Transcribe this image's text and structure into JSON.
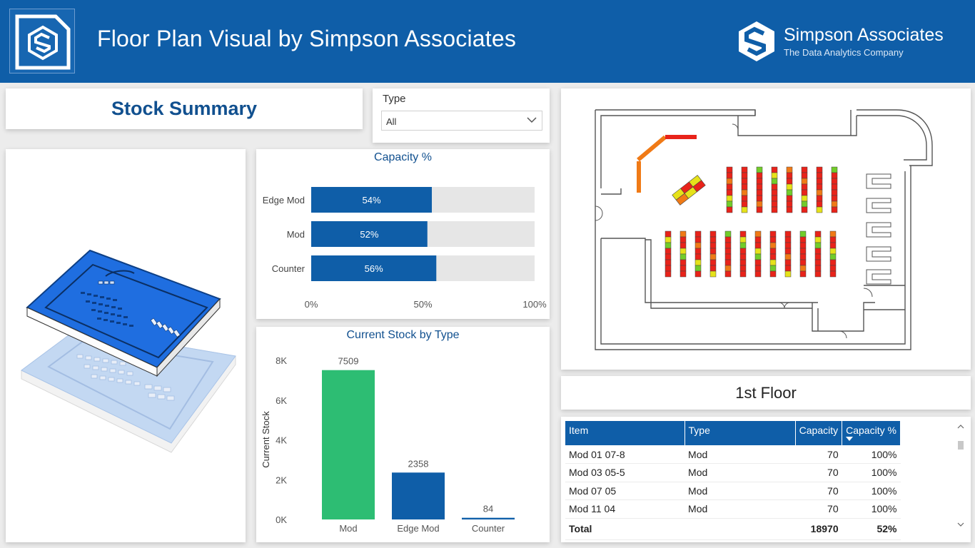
{
  "header": {
    "title": "Floor Plan Visual by Simpson Associates",
    "logo_icon": "simpson-s-icon",
    "brand_name": "Simpson Associates",
    "brand_tagline": "The Data Analytics Company",
    "bg_color": "#0f5ea8"
  },
  "summary": {
    "title": "Stock Summary"
  },
  "slicer": {
    "label": "Type",
    "value": "All",
    "icon": "chevron-down-icon"
  },
  "capacity_chart": {
    "chart_data": {
      "type": "bar",
      "orientation": "horizontal",
      "title": "Capacity %",
      "categories": [
        "Edge Mod",
        "Mod",
        "Counter"
      ],
      "values": [
        54,
        52,
        56
      ],
      "value_labels": [
        "54%",
        "52%",
        "56%"
      ],
      "xlim": [
        0,
        100
      ],
      "ticks": [
        "0%",
        "50%",
        "100%"
      ],
      "bar_color": "#0f5ea8",
      "track_color": "#e6e6e6"
    }
  },
  "stock_chart": {
    "chart_data": {
      "type": "bar",
      "title": "Current Stock by Type",
      "ylabel": "Current Stock",
      "categories": [
        "Mod",
        "Edge Mod",
        "Counter"
      ],
      "values": [
        7509,
        2358,
        84
      ],
      "value_labels": [
        "7509",
        "2358",
        "84"
      ],
      "ylim": [
        0,
        8000
      ],
      "ticks": [
        {
          "value": 0,
          "label": "0K"
        },
        {
          "value": 2000,
          "label": "2K"
        },
        {
          "value": 4000,
          "label": "4K"
        },
        {
          "value": 6000,
          "label": "6K"
        },
        {
          "value": 8000,
          "label": "8K"
        }
      ],
      "colors": [
        "#2dbd73",
        "#0f5ea8",
        "#0f5ea8"
      ]
    }
  },
  "floor": {
    "label": "1st Floor"
  },
  "table": {
    "columns": [
      "Item",
      "Type",
      "Capacity",
      "Capacity %"
    ],
    "rows": [
      [
        "Mod 01 07-8",
        "Mod",
        "70",
        "100%"
      ],
      [
        "Mod 03 05-5",
        "Mod",
        "70",
        "100%"
      ],
      [
        "Mod 07 05",
        "Mod",
        "70",
        "100%"
      ],
      [
        "Mod 11 04",
        "Mod",
        "70",
        "100%"
      ]
    ],
    "total": [
      "Total",
      "",
      "18970",
      "52%"
    ]
  },
  "floorplan_colors": {
    "red": "#e8231a",
    "orange": "#f07a16",
    "yellow": "#e6e21a",
    "green": "#72cc2a"
  }
}
